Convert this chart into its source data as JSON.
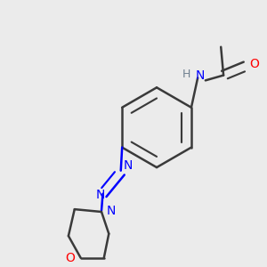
{
  "bg_color": "#ebebeb",
  "bond_color": "#3a3a3a",
  "N_color": "#0000ff",
  "O_color": "#ff0000",
  "H_color": "#708090",
  "lw": 1.8,
  "fs": 9.5,
  "xlim": [
    0.0,
    1.0
  ],
  "ylim": [
    0.0,
    1.0
  ]
}
